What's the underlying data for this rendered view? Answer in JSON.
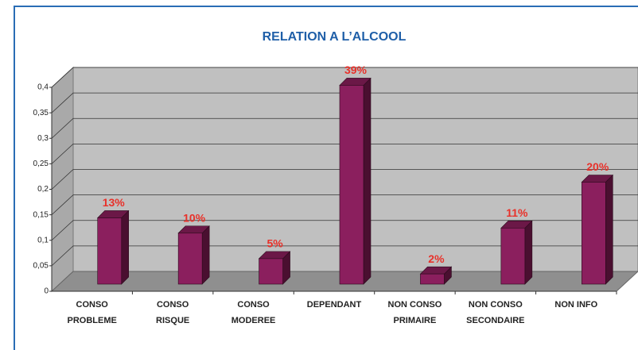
{
  "chart_data": {
    "type": "bar3d",
    "title": "RELATION A L’ALCOOL",
    "categories": [
      [
        "CONSO",
        "PROBLEME"
      ],
      [
        "CONSO",
        "RISQUE"
      ],
      [
        "CONSO",
        "MODEREE"
      ],
      [
        "DEPENDANT"
      ],
      [
        "NON CONSO",
        "PRIMAIRE"
      ],
      [
        "NON CONSO",
        "SECONDAIRE"
      ],
      [
        "NON INFO"
      ]
    ],
    "values": [
      0.13,
      0.1,
      0.05,
      0.39,
      0.02,
      0.11,
      0.2
    ],
    "value_labels": [
      "13%",
      "10%",
      "5%",
      "39%",
      "2%",
      "11%",
      "20%"
    ],
    "color": "#8b1f5e",
    "ylim": [
      0,
      0.4
    ],
    "yticks": [
      0,
      {
        "value": 0.05,
        "label": "0,05"
      },
      {
        "value": 0.1,
        "label": "0,1"
      },
      {
        "value": 0.15,
        "label": "0,15"
      },
      {
        "value": 0.2,
        "label": "0,2"
      },
      {
        "value": 0.25,
        "label": "0,25"
      },
      {
        "value": 0.3,
        "label": "0,3"
      },
      {
        "value": 0.35,
        "label": "0,35"
      },
      {
        "value": 0.4,
        "label": "0,4"
      }
    ],
    "grid": true
  }
}
